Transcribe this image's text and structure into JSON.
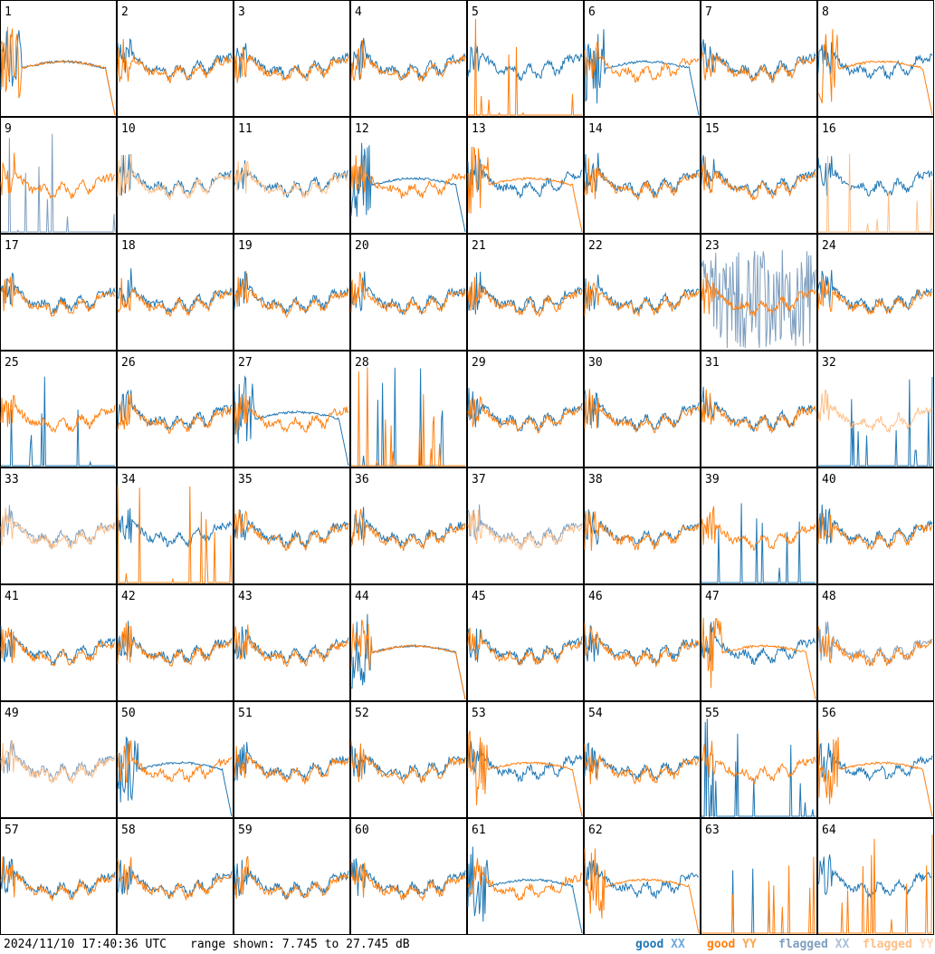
{
  "footer": {
    "timestamp": "2024/11/10 17:40:36 UTC",
    "range": "range shown: 7.745 to 27.745 dB"
  },
  "legend": [
    {
      "word": "good",
      "pol": "XX",
      "color": "#1f77b4"
    },
    {
      "word": "good",
      "pol": "YY",
      "color": "#ff7f0e"
    },
    {
      "word": "flagged",
      "pol": "XX",
      "color": "#7f9fbf"
    },
    {
      "word": "flagged",
      "pol": "YY",
      "color": "#ffbf87"
    }
  ],
  "chart_data": {
    "type": "line",
    "grid": {
      "rows": 8,
      "cols": 8
    },
    "ylim": [
      7.745,
      27.745
    ],
    "yunit": "dB",
    "tiles": [
      {
        "label": "1",
        "xx": "drop",
        "yy": "drop"
      },
      {
        "label": "2",
        "xx": "good",
        "yy": "good"
      },
      {
        "label": "3",
        "xx": "good",
        "yy": "good"
      },
      {
        "label": "4",
        "xx": "good",
        "yy": "good"
      },
      {
        "label": "5",
        "xx": "good",
        "yy": "zero"
      },
      {
        "label": "6",
        "xx": "drop",
        "yy": "good"
      },
      {
        "label": "7",
        "xx": "good",
        "yy": "good"
      },
      {
        "label": "8",
        "xx": "good",
        "yy": "drop"
      },
      {
        "label": "9",
        "xx": "flagzero",
        "yy": "good"
      },
      {
        "label": "10",
        "xx": "good",
        "yy": "flagged"
      },
      {
        "label": "11",
        "xx": "good",
        "yy": "flagged"
      },
      {
        "label": "12",
        "xx": "drop",
        "yy": "good"
      },
      {
        "label": "13",
        "xx": "good",
        "yy": "drop"
      },
      {
        "label": "14",
        "xx": "good",
        "yy": "good"
      },
      {
        "label": "15",
        "xx": "good",
        "yy": "good"
      },
      {
        "label": "16",
        "xx": "good",
        "yy": "flagzero"
      },
      {
        "label": "17",
        "xx": "good",
        "yy": "good"
      },
      {
        "label": "18",
        "xx": "good",
        "yy": "good"
      },
      {
        "label": "19",
        "xx": "good",
        "yy": "good"
      },
      {
        "label": "20",
        "xx": "good",
        "yy": "good"
      },
      {
        "label": "21",
        "xx": "good",
        "yy": "good"
      },
      {
        "label": "22",
        "xx": "good",
        "yy": "good"
      },
      {
        "label": "23",
        "xx": "flagnoise",
        "yy": "good"
      },
      {
        "label": "24",
        "xx": "good",
        "yy": "good"
      },
      {
        "label": "25",
        "xx": "zero",
        "yy": "good"
      },
      {
        "label": "26",
        "xx": "good",
        "yy": "good"
      },
      {
        "label": "27",
        "xx": "drop",
        "yy": "good"
      },
      {
        "label": "28",
        "xx": "zero",
        "yy": "zero"
      },
      {
        "label": "29",
        "xx": "good",
        "yy": "good"
      },
      {
        "label": "30",
        "xx": "good",
        "yy": "good"
      },
      {
        "label": "31",
        "xx": "good",
        "yy": "good"
      },
      {
        "label": "32",
        "xx": "zero",
        "yy": "flagged"
      },
      {
        "label": "33",
        "xx": "flagged",
        "yy": "flagged"
      },
      {
        "label": "34",
        "xx": "good",
        "yy": "zero"
      },
      {
        "label": "35",
        "xx": "good",
        "yy": "good"
      },
      {
        "label": "36",
        "xx": "good",
        "yy": "good"
      },
      {
        "label": "37",
        "xx": "flagged",
        "yy": "flagged"
      },
      {
        "label": "38",
        "xx": "good",
        "yy": "good"
      },
      {
        "label": "39",
        "xx": "zero",
        "yy": "good"
      },
      {
        "label": "40",
        "xx": "good",
        "yy": "good"
      },
      {
        "label": "41",
        "xx": "good",
        "yy": "good"
      },
      {
        "label": "42",
        "xx": "good",
        "yy": "good"
      },
      {
        "label": "43",
        "xx": "good",
        "yy": "good"
      },
      {
        "label": "44",
        "xx": "drop",
        "yy": "drop"
      },
      {
        "label": "45",
        "xx": "good",
        "yy": "good"
      },
      {
        "label": "46",
        "xx": "good",
        "yy": "good"
      },
      {
        "label": "47",
        "xx": "good",
        "yy": "drop"
      },
      {
        "label": "48",
        "xx": "flagged",
        "yy": "good"
      },
      {
        "label": "49",
        "xx": "flagged",
        "yy": "flagged"
      },
      {
        "label": "50",
        "xx": "drop",
        "yy": "good"
      },
      {
        "label": "51",
        "xx": "good",
        "yy": "good"
      },
      {
        "label": "52",
        "xx": "good",
        "yy": "good"
      },
      {
        "label": "53",
        "xx": "good",
        "yy": "drop"
      },
      {
        "label": "54",
        "xx": "good",
        "yy": "good"
      },
      {
        "label": "55",
        "xx": "zero",
        "yy": "good"
      },
      {
        "label": "56",
        "xx": "good",
        "yy": "drop"
      },
      {
        "label": "57",
        "xx": "good",
        "yy": "good"
      },
      {
        "label": "58",
        "xx": "good",
        "yy": "good"
      },
      {
        "label": "59",
        "xx": "good",
        "yy": "good"
      },
      {
        "label": "60",
        "xx": "good",
        "yy": "good"
      },
      {
        "label": "61",
        "xx": "drop",
        "yy": "good"
      },
      {
        "label": "62",
        "xx": "good",
        "yy": "drop"
      },
      {
        "label": "63",
        "xx": "zero",
        "yy": "zero"
      },
      {
        "label": "64",
        "xx": "good",
        "yy": "zero"
      }
    ]
  }
}
